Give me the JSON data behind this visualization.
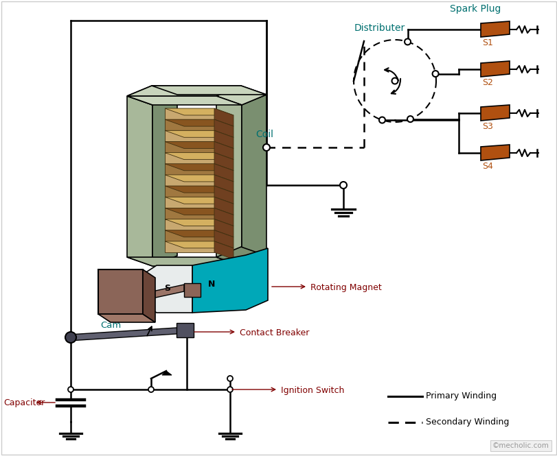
{
  "bg_color": "#ffffff",
  "coil_color": "#a8b89a",
  "coil_dark": "#7a8f70",
  "coil_top": "#c8d4bc",
  "winding_color": "#c8a870",
  "winding_dark": "#a07840",
  "magnet_n_color": "#00a8b8",
  "cam_color": "#8B6558",
  "cam_dark": "#6B4538",
  "breaker_color": "#606070",
  "spark_color": "#b05010",
  "label_color": "#007070",
  "annotation_color": "#800000",
  "watermark": "mecholic.com",
  "copyright": "©mecholic.com",
  "dist_label": "Distributer",
  "spark_label": "Spark Plug",
  "coil_label": "Coil",
  "cam_label": "Cam",
  "rot_mag_label": "Rotating Magnet",
  "contact_label": "Contact Breaker",
  "ign_label": "Ignition Switch",
  "cap_label": "Capacitor",
  "primary_label": "Primary Winding",
  "secondary_label": "Secondary Winding",
  "plug_labels": [
    "S1",
    "S2",
    "S3",
    "S4"
  ]
}
